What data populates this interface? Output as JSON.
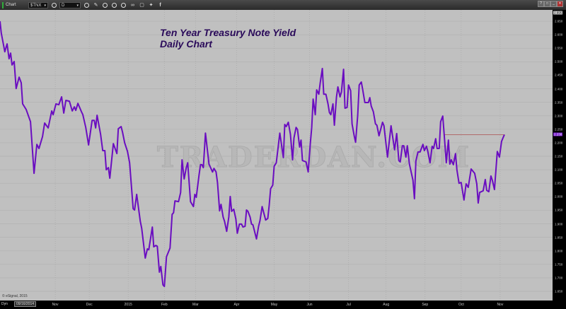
{
  "toolbar": {
    "title": "Chart",
    "symbol": "$TNX",
    "interval": "D",
    "icons": [
      "settings-icon",
      "clock-icon",
      "pencil-icon",
      "refresh-icon",
      "target-icon",
      "target-icon",
      "link-icon",
      "window-icon",
      "twitter-icon",
      "facebook-icon"
    ]
  },
  "window_controls": [
    "?",
    "□",
    "_",
    "✕"
  ],
  "chart_title_line1": "Ten Year Treasury Note Yield",
  "chart_title_line2": "Daily Chart",
  "watermark": "TRADERDAN.COM",
  "copyright": "© eSignal, 2015",
  "bottom_bar": {
    "mode": "Dyn",
    "date": "09/16/2014"
  },
  "colors": {
    "line": "#6a0dc0",
    "background": "#c0c0c0",
    "reference_line": "#b06a6a",
    "current_badge": "#7a1fd0"
  },
  "chart_data": {
    "type": "line",
    "title": "Ten Year Treasury Note Yield Daily Chart",
    "xlabel": "",
    "ylabel": "",
    "xlim": [
      0,
      312
    ],
    "ylim": [
      1.616,
      2.692
    ],
    "grid": true,
    "y_top_label": "2.695",
    "current_value": "2.230",
    "reference_line": {
      "value": 2.23,
      "from_day": 251,
      "to_day": 285
    },
    "y_ticks": [
      2.65,
      2.6,
      2.55,
      2.5,
      2.45,
      2.4,
      2.35,
      2.3,
      2.25,
      2.2,
      2.15,
      2.1,
      2.05,
      2.0,
      1.95,
      1.9,
      1.85,
      1.8,
      1.75,
      1.7,
      1.65
    ],
    "x_ticks": [
      {
        "label": "Nov",
        "day": 31.2
      },
      {
        "label": "Dec",
        "day": 50.4
      },
      {
        "label": "2015",
        "day": 72.4
      },
      {
        "label": "Feb",
        "day": 92.8
      },
      {
        "label": "Mar",
        "day": 110.4
      },
      {
        "label": "Apr",
        "day": 133.6
      },
      {
        "label": "May",
        "day": 154.8
      },
      {
        "label": "Jun",
        "day": 174.8
      },
      {
        "label": "Jul",
        "day": 196.8
      },
      {
        "label": "Aug",
        "day": 218
      },
      {
        "label": "Sep",
        "day": 240
      },
      {
        "label": "Oct",
        "day": 260.4
      },
      {
        "label": "Nov",
        "day": 282.4
      }
    ],
    "series": [
      {
        "name": "$TNX",
        "x": [
          0,
          0.7,
          2.7,
          4,
          5.1,
          6,
          6.8,
          8,
          9.1,
          10.8,
          12,
          12.8,
          14.8,
          17.2,
          19.2,
          20.8,
          22,
          24,
          25.2,
          27.2,
          29.2,
          30,
          31.6,
          33.2,
          34.8,
          36,
          37.2,
          39.2,
          40.8,
          42,
          42.8,
          44,
          46,
          46.8,
          48.4,
          50,
          52,
          53.2,
          54,
          54.8,
          56.8,
          58,
          59.2,
          60,
          61.2,
          62,
          64,
          66,
          66.8,
          68.4,
          69.2,
          70.4,
          72,
          73.2,
          75.2,
          76,
          77.2,
          79.2,
          80,
          82,
          83.2,
          84,
          86,
          86.8,
          88,
          88.8,
          90,
          90.8,
          92,
          92.8,
          94,
          96,
          97.2,
          98,
          98.8,
          100.8,
          102,
          102.8,
          104,
          105.2,
          106,
          107.6,
          109.2,
          110,
          110.8,
          112.4,
          113.2,
          114,
          114.8,
          116,
          118,
          120,
          120.8,
          122,
          122.8,
          124,
          124.8,
          126,
          126.8,
          128,
          129.2,
          130,
          130.8,
          132,
          133.2,
          134,
          135.2,
          136.4,
          137.2,
          138.4,
          139.2,
          140,
          141.2,
          142,
          142.8,
          144.8,
          146,
          146.8,
          148,
          150,
          151.2,
          152,
          152.8,
          154,
          154.8,
          156,
          158,
          160,
          160.8,
          161.6,
          162.8,
          164,
          165.2,
          166,
          167.2,
          168,
          169.2,
          170,
          170.8,
          172.8,
          174,
          175.2,
          176,
          176.8,
          178,
          178.8,
          180,
          180.8,
          182,
          182.8,
          184,
          185.2,
          186,
          186.8,
          188,
          188.8,
          190,
          190.8,
          192,
          192.8,
          194,
          194.8,
          196,
          196.8,
          198,
          198.8,
          200,
          200.8,
          202,
          202.8,
          204,
          204.8,
          206,
          208,
          208.8,
          209.6,
          210.8,
          212,
          212.8,
          214,
          216,
          216.8,
          218.8,
          220.8,
          222.8,
          224,
          225.2,
          226,
          227.2,
          228,
          229.2,
          230,
          231.2,
          233.2,
          234,
          234.8,
          236,
          237.2,
          238.8,
          239.6,
          240.8,
          241.6,
          242.8,
          244,
          244.8,
          246,
          246.8,
          248,
          248.8,
          250,
          250.8,
          252,
          253.2,
          254,
          254.8,
          256,
          257.2,
          258,
          259.2,
          260.4,
          262,
          263.2,
          264.4,
          266,
          268,
          269.2,
          270,
          270.8,
          272.8,
          274,
          274.8,
          276,
          277.2,
          278,
          279.2,
          280.8,
          282,
          283.2,
          284,
          284.8
        ],
        "values": [
          2.65,
          2.606,
          2.537,
          2.566,
          2.511,
          2.532,
          2.488,
          2.501,
          2.401,
          2.443,
          2.422,
          2.344,
          2.323,
          2.278,
          2.087,
          2.194,
          2.179,
          2.223,
          2.273,
          2.255,
          2.318,
          2.304,
          2.344,
          2.341,
          2.37,
          2.31,
          2.357,
          2.354,
          2.318,
          2.333,
          2.32,
          2.346,
          2.315,
          2.304,
          2.257,
          2.192,
          2.283,
          2.283,
          2.255,
          2.302,
          2.231,
          2.171,
          2.171,
          2.1,
          2.108,
          2.069,
          2.197,
          2.16,
          2.252,
          2.26,
          2.239,
          2.2,
          2.168,
          2.126,
          1.956,
          1.951,
          2.009,
          1.909,
          1.883,
          1.773,
          1.807,
          1.804,
          1.888,
          1.815,
          1.82,
          1.817,
          1.721,
          1.742,
          1.674,
          1.668,
          1.778,
          1.81,
          1.935,
          1.941,
          1.985,
          1.982,
          2.016,
          2.137,
          2.066,
          2.108,
          2.126,
          1.982,
          1.964,
          2.009,
          1.998,
          2.082,
          2.119,
          2.119,
          2.108,
          2.236,
          2.121,
          2.092,
          2.105,
          2.092,
          2.053,
          1.948,
          1.972,
          1.925,
          1.909,
          1.872,
          1.925,
          2.001,
          1.946,
          1.954,
          1.917,
          1.865,
          1.899,
          1.899,
          1.888,
          1.891,
          1.951,
          1.946,
          1.925,
          1.899,
          1.896,
          1.844,
          1.891,
          1.912,
          1.964,
          1.914,
          1.92,
          1.969,
          2.03,
          2.043,
          2.113,
          2.126,
          2.236,
          2.145,
          2.268,
          2.26,
          2.276,
          2.231,
          2.137,
          2.218,
          2.257,
          2.249,
          2.184,
          2.21,
          2.134,
          2.129,
          2.092,
          2.197,
          2.257,
          2.362,
          2.304,
          2.396,
          2.38,
          2.422,
          2.475,
          2.38,
          2.38,
          2.344,
          2.312,
          2.304,
          2.344,
          2.265,
          2.37,
          2.407,
          2.37,
          2.388,
          2.472,
          2.328,
          2.331,
          2.414,
          2.393,
          2.27,
          2.226,
          2.202,
          2.302,
          2.414,
          2.425,
          2.396,
          2.349,
          2.349,
          2.367,
          2.336,
          2.315,
          2.27,
          2.265,
          2.226,
          2.276,
          2.263,
          2.147,
          2.263,
          2.174,
          2.234,
          2.134,
          2.129,
          2.189,
          2.189,
          2.147,
          2.189,
          2.121,
          2.061,
          1.993,
          2.132,
          2.166,
          2.166,
          2.194,
          2.171,
          2.187,
          2.166,
          2.126,
          2.187,
          2.179,
          2.215,
          2.179,
          2.179,
          2.278,
          2.299,
          2.231,
          2.126,
          2.21,
          2.121,
          2.137,
          2.119,
          2.16,
          2.1,
          2.05,
          2.053,
          1.988,
          2.048,
          2.035,
          2.103,
          2.087,
          2.048,
          1.977,
          2.016,
          2.022,
          2.064,
          2.024,
          2.019,
          2.077,
          2.061,
          2.027,
          2.168,
          2.147,
          2.205,
          2.218,
          2.23
        ]
      }
    ]
  }
}
